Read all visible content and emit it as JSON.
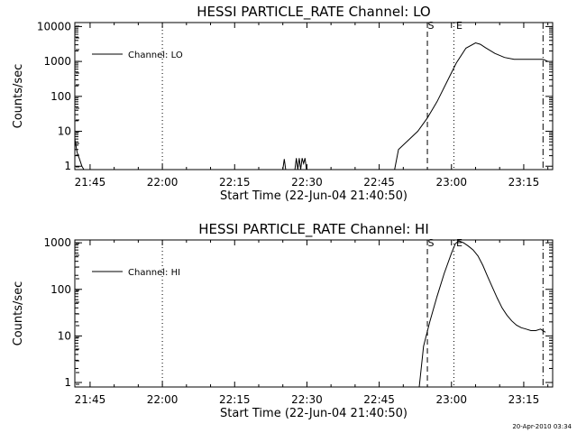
{
  "footer_stamp": "20-Apr-2010 03:34",
  "chart_data": [
    {
      "type": "line",
      "title": "HESSI PARTICLE_RATE Channel: LO",
      "xlabel": "Start Time (22-Jun-04 21:40:50)",
      "ylabel": "Counts/sec",
      "y_scale": "log",
      "xlim": [
        "21:40:50",
        "23:20:00"
      ],
      "ylim": [
        0.8,
        13000
      ],
      "x_tick_labels": [
        "21:45",
        "22:00",
        "22:15",
        "22:30",
        "22:45",
        "23:00",
        "23:15"
      ],
      "x_ticks_minutes": [
        224,
        239,
        254,
        269,
        284,
        299,
        314
      ],
      "y_tick_labels": [
        "1",
        "10",
        "100",
        "1000",
        "10000"
      ],
      "y_ticks": [
        1,
        10,
        100,
        1000,
        10000
      ],
      "legend": {
        "label": "Channel: LO",
        "position": "top-left"
      },
      "markers": [
        {
          "label": "S",
          "time": "22:54",
          "style": "dashed"
        },
        {
          "label": "E",
          "time": "22:59:30",
          "style": "dotted"
        },
        {
          "label": "",
          "time": "23:18",
          "style": "dash-dot"
        },
        {
          "label": "",
          "time": "21:59",
          "style": "dotted"
        }
      ],
      "series": [
        {
          "time_minutes": [
            220.83,
            221.3,
            221.8,
            222.3,
            222.7,
            264.0,
            264.3,
            264.6,
            266.5,
            266.8,
            267.1,
            267.4,
            267.7,
            268.0,
            268.3,
            268.6,
            268.9,
            287.2,
            288.0,
            290.0,
            292.0,
            294.0,
            296.0,
            298.0,
            300.0,
            302.0,
            304.0,
            305.0,
            306.0,
            308.0,
            310.0,
            312.0,
            314.0,
            316.0,
            318.0,
            319.0
          ],
          "values": [
            6,
            2.5,
            1.6,
            1.0,
            0.8,
            0.8,
            1.6,
            0.8,
            0.8,
            1.7,
            0.8,
            1.7,
            0.8,
            1.7,
            1.2,
            1.7,
            0.8,
            0.8,
            3,
            5.5,
            10,
            24,
            70,
            250,
            900,
            2400,
            3400,
            3100,
            2500,
            1700,
            1300,
            1150,
            1150,
            1150,
            1150,
            1000
          ]
        }
      ]
    },
    {
      "type": "line",
      "title": "HESSI PARTICLE_RATE Channel: HI",
      "xlabel": "Start Time (22-Jun-04 21:40:50)",
      "ylabel": "Counts/sec",
      "y_scale": "log",
      "xlim": [
        "21:40:50",
        "23:20:00"
      ],
      "ylim": [
        0.8,
        1150
      ],
      "x_tick_labels": [
        "21:45",
        "22:00",
        "22:15",
        "22:30",
        "22:45",
        "23:00",
        "23:15"
      ],
      "x_ticks_minutes": [
        224,
        239,
        254,
        269,
        284,
        299,
        314
      ],
      "y_tick_labels": [
        "1",
        "10",
        "100",
        "1000"
      ],
      "y_ticks": [
        1,
        10,
        100,
        1000
      ],
      "legend": {
        "label": "Channel: HI",
        "position": "top-left"
      },
      "markers": [
        {
          "label": "S",
          "time": "22:54",
          "style": "dashed"
        },
        {
          "label": "E",
          "time": "22:59:30",
          "style": "dotted"
        },
        {
          "label": "",
          "time": "23:18",
          "style": "dash-dot"
        },
        {
          "label": "",
          "time": "21:59",
          "style": "dotted"
        }
      ],
      "series": [
        {
          "time_minutes": [
            292.3,
            293.2,
            294.5,
            296.0,
            297.5,
            299.0,
            299.8,
            300.5,
            301.5,
            302.5,
            303.5,
            304.5,
            305.5,
            306.5,
            307.5,
            308.5,
            309.5,
            310.5,
            311.5,
            312.5,
            313.5,
            314.5,
            315.5,
            316.5,
            317.5,
            318.5
          ],
          "values": [
            0.8,
            6,
            20,
            70,
            220,
            600,
            950,
            1100,
            1000,
            850,
            700,
            520,
            330,
            190,
            110,
            65,
            40,
            28,
            21,
            17,
            15,
            14,
            13,
            13,
            14,
            12
          ]
        }
      ]
    }
  ]
}
